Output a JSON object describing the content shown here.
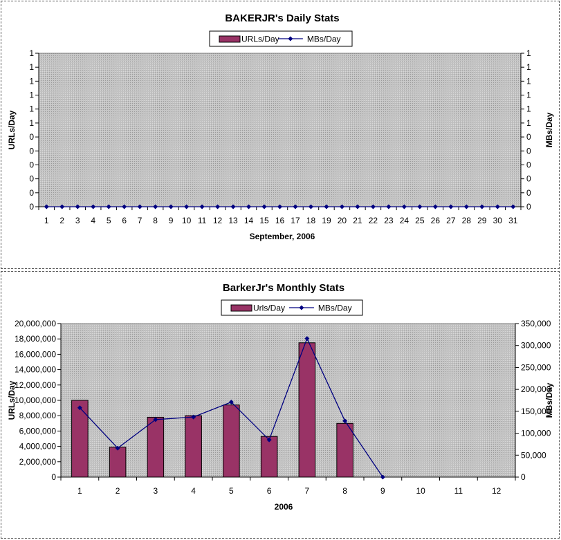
{
  "chart_data": [
    {
      "type": "bar+line",
      "title": "BAKERJR's Daily Stats",
      "xlabel": "September, 2006",
      "ylabel_left": "URLs/Day",
      "ylabel_right": "MBs/Day",
      "legend_position": "top-center",
      "grid": false,
      "categories": [
        "1",
        "2",
        "3",
        "4",
        "5",
        "6",
        "7",
        "8",
        "9",
        "10",
        "11",
        "12",
        "13",
        "14",
        "15",
        "16",
        "17",
        "18",
        "19",
        "20",
        "21",
        "22",
        "23",
        "24",
        "25",
        "26",
        "27",
        "28",
        "29",
        "30",
        "31"
      ],
      "y_ticks_left": [
        "0",
        "0",
        "0",
        "0",
        "0",
        "0",
        "1",
        "1",
        "1",
        "1",
        "1",
        "1"
      ],
      "y_ticks_right": [
        "0",
        "0",
        "0",
        "0",
        "0",
        "0",
        "1",
        "1",
        "1",
        "1",
        "1",
        "1"
      ],
      "ylim_left": [
        0,
        1
      ],
      "ylim_right": [
        0,
        1
      ],
      "series": [
        {
          "name": "URLs/Day",
          "kind": "bar",
          "axis": "left",
          "color": "#993366",
          "values": [
            0,
            0,
            0,
            0,
            0,
            0,
            0,
            0,
            0,
            0,
            0,
            0,
            0,
            0,
            0,
            0,
            0,
            0,
            0,
            0,
            0,
            0,
            0,
            0,
            0,
            0,
            0,
            0,
            0,
            0,
            0
          ]
        },
        {
          "name": "MBs/Day",
          "kind": "line",
          "axis": "right",
          "color": "#000080",
          "values": [
            0,
            0,
            0,
            0,
            0,
            0,
            0,
            0,
            0,
            0,
            0,
            0,
            0,
            0,
            0,
            0,
            0,
            0,
            0,
            0,
            0,
            0,
            0,
            0,
            0,
            0,
            0,
            0,
            0,
            0,
            0
          ]
        }
      ]
    },
    {
      "type": "bar+line",
      "title": "BarkerJr's Monthly Stats",
      "xlabel": "2006",
      "ylabel_left": "URLs/Day",
      "ylabel_right": "MBs/Day",
      "legend_position": "top-center",
      "grid": false,
      "categories": [
        "1",
        "2",
        "3",
        "4",
        "5",
        "6",
        "7",
        "8",
        "9",
        "10",
        "11",
        "12"
      ],
      "y_ticks_left": [
        "0",
        "2,000,000",
        "4,000,000",
        "6,000,000",
        "8,000,000",
        "10,000,000",
        "12,000,000",
        "14,000,000",
        "16,000,000",
        "18,000,000",
        "20,000,000"
      ],
      "y_ticks_right": [
        "0",
        "50,000",
        "100,000",
        "150,000",
        "200,000",
        "250,000",
        "300,000",
        "350,000"
      ],
      "ylim_left": [
        0,
        20000000
      ],
      "ylim_right": [
        0,
        350000
      ],
      "series": [
        {
          "name": "Urls/Day",
          "kind": "bar",
          "axis": "left",
          "color": "#993366",
          "values": [
            10000000,
            3900000,
            7800000,
            8000000,
            9400000,
            5300000,
            17500000,
            7000000,
            null,
            null,
            null,
            null
          ]
        },
        {
          "name": "MBs/Day",
          "kind": "line",
          "axis": "right",
          "color": "#000080",
          "values": [
            158000,
            66000,
            131000,
            137000,
            171000,
            85000,
            316000,
            128000,
            0,
            null,
            null,
            null
          ]
        }
      ]
    }
  ]
}
